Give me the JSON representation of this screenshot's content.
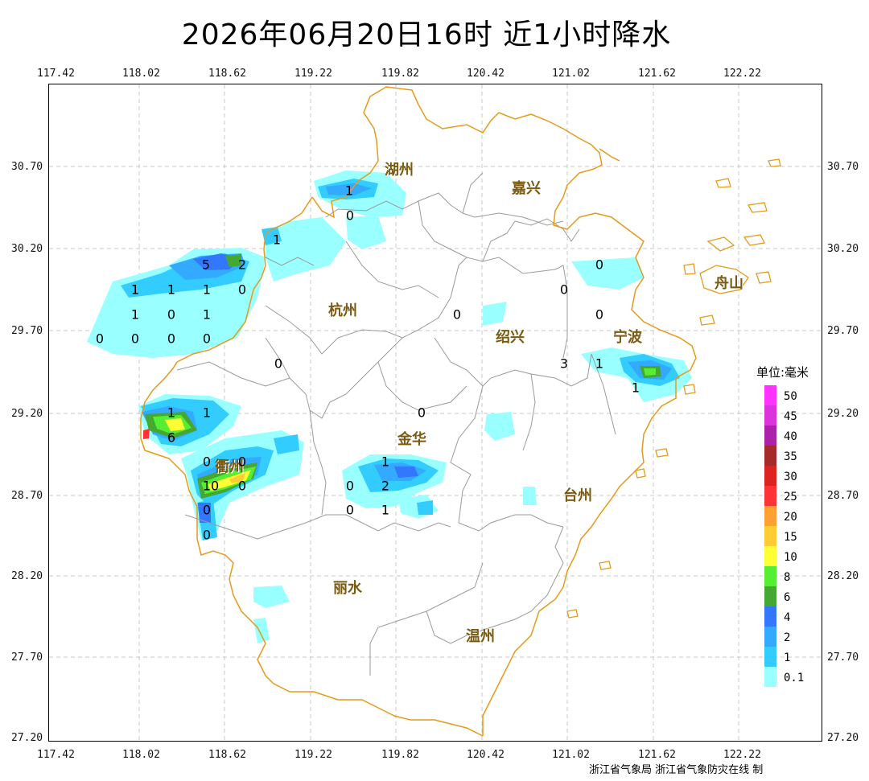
{
  "title": "2026年06月20日16时  近1小时降水",
  "x_ticks": [
    "117.42",
    "118.02",
    "118.62",
    "119.22",
    "119.82",
    "120.42",
    "121.02",
    "121.62",
    "122.22"
  ],
  "y_ticks": [
    "30.70",
    "30.20",
    "29.70",
    "29.20",
    "28.70",
    "28.20",
    "27.70",
    "27.20"
  ],
  "cities": [
    {
      "name": "湖州"
    },
    {
      "name": "嘉兴"
    },
    {
      "name": "杭州"
    },
    {
      "name": "绍兴"
    },
    {
      "name": "宁波"
    },
    {
      "name": "舟山"
    },
    {
      "name": "金华"
    },
    {
      "name": "衢州"
    },
    {
      "name": "台州"
    },
    {
      "name": "丽水"
    },
    {
      "name": "温州"
    }
  ],
  "station_values": [
    {
      "v": "1"
    },
    {
      "v": "0"
    },
    {
      "v": "1"
    },
    {
      "v": "5"
    },
    {
      "v": "2"
    },
    {
      "v": "1"
    },
    {
      "v": "1"
    },
    {
      "v": "1"
    },
    {
      "v": "0"
    },
    {
      "v": "1"
    },
    {
      "v": "0"
    },
    {
      "v": "1"
    },
    {
      "v": "0"
    },
    {
      "v": "0"
    },
    {
      "v": "0"
    },
    {
      "v": "0"
    },
    {
      "v": "0"
    },
    {
      "v": "0"
    },
    {
      "v": "0"
    },
    {
      "v": "0"
    },
    {
      "v": "0"
    },
    {
      "v": "3"
    },
    {
      "v": "1"
    },
    {
      "v": "1"
    },
    {
      "v": "1"
    },
    {
      "v": "1"
    },
    {
      "v": "6"
    },
    {
      "v": "0"
    },
    {
      "v": "0"
    },
    {
      "v": "0"
    },
    {
      "v": "10"
    },
    {
      "v": "0"
    },
    {
      "v": "0"
    },
    {
      "v": "0"
    },
    {
      "v": "1"
    },
    {
      "v": "0"
    },
    {
      "v": "2"
    },
    {
      "v": "0"
    },
    {
      "v": "1"
    }
  ],
  "legend": {
    "title": "单位:毫米",
    "items": [
      {
        "label": "50",
        "color": "#ff33ff"
      },
      {
        "label": "45",
        "color": "#dd33dd"
      },
      {
        "label": "40",
        "color": "#aa22aa"
      },
      {
        "label": "35",
        "color": "#a52a2a"
      },
      {
        "label": "30",
        "color": "#dd2222"
      },
      {
        "label": "25",
        "color": "#ff3333"
      },
      {
        "label": "20",
        "color": "#ffa033"
      },
      {
        "label": "15",
        "color": "#ffcc33"
      },
      {
        "label": "10",
        "color": "#ffff33"
      },
      {
        "label": "8",
        "color": "#55ee33"
      },
      {
        "label": "6",
        "color": "#44a833"
      },
      {
        "label": "4",
        "color": "#3377ff"
      },
      {
        "label": "2",
        "color": "#33aaff"
      },
      {
        "label": "1",
        "color": "#33ccff"
      },
      {
        "label": "0.1",
        "color": "#99ffff"
      }
    ]
  },
  "footer": "浙江省气象局 浙江省气象防灾在线 制"
}
